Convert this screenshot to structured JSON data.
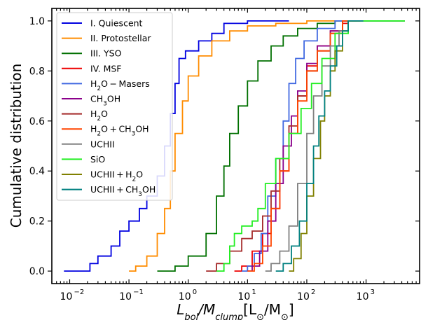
{
  "chart_data": {
    "type": "line",
    "step": true,
    "xscale": "log",
    "xlim": [
      0.005,
      8000
    ],
    "ylim": [
      -0.05,
      1.05
    ],
    "xlabel": "L_bol/M_clump[L⊙/M⊙]",
    "ylabel": "Cumulative distribution",
    "x_tick_labels": [
      "10",
      "10",
      "10",
      "10",
      "10",
      "10"
    ],
    "x_tick_exponents": [
      "−2",
      "−1",
      "0",
      "1",
      "2",
      "3"
    ],
    "x_tick_values": [
      0.01,
      0.1,
      1,
      10,
      100,
      1000
    ],
    "y_tick_labels": [
      "0.0",
      "0.2",
      "0.4",
      "0.6",
      "0.8",
      "1.0"
    ],
    "y_tick_values": [
      0,
      0.2,
      0.4,
      0.6,
      0.8,
      1.0
    ],
    "legend_position": "upper-left",
    "series": [
      {
        "name": "I. Quiescent",
        "legend": [
          "I. Quiescent"
        ],
        "color": "#0000e0",
        "points": [
          [
            0.008,
            0
          ],
          [
            0.02,
            0
          ],
          [
            0.022,
            0.03
          ],
          [
            0.03,
            0.06
          ],
          [
            0.05,
            0.1
          ],
          [
            0.07,
            0.16
          ],
          [
            0.1,
            0.2
          ],
          [
            0.15,
            0.25
          ],
          [
            0.2,
            0.3
          ],
          [
            0.3,
            0.38
          ],
          [
            0.4,
            0.5
          ],
          [
            0.5,
            0.63
          ],
          [
            0.6,
            0.75
          ],
          [
            0.7,
            0.85
          ],
          [
            0.9,
            0.88
          ],
          [
            1.5,
            0.92
          ],
          [
            2.5,
            0.95
          ],
          [
            4,
            0.99
          ],
          [
            10,
            1.0
          ],
          [
            50,
            1.0
          ]
        ]
      },
      {
        "name": "II. Protostellar",
        "legend": [
          "II. Protostellar"
        ],
        "color": "#ff8c00",
        "points": [
          [
            0.1,
            0
          ],
          [
            0.13,
            0.02
          ],
          [
            0.2,
            0.06
          ],
          [
            0.3,
            0.15
          ],
          [
            0.4,
            0.25
          ],
          [
            0.5,
            0.4
          ],
          [
            0.6,
            0.55
          ],
          [
            0.8,
            0.68
          ],
          [
            1,
            0.78
          ],
          [
            1.5,
            0.86
          ],
          [
            2.5,
            0.92
          ],
          [
            5,
            0.96
          ],
          [
            10,
            0.98
          ],
          [
            30,
            0.99
          ],
          [
            100,
            1.0
          ],
          [
            300,
            1.0
          ]
        ]
      },
      {
        "name": "III. YSO",
        "legend": [
          "III. YSO"
        ],
        "color": "#007000",
        "points": [
          [
            0.3,
            0
          ],
          [
            0.6,
            0.02
          ],
          [
            1,
            0.06
          ],
          [
            2,
            0.15
          ],
          [
            3,
            0.3
          ],
          [
            4,
            0.42
          ],
          [
            5,
            0.55
          ],
          [
            7,
            0.66
          ],
          [
            10,
            0.76
          ],
          [
            15,
            0.84
          ],
          [
            25,
            0.9
          ],
          [
            40,
            0.94
          ],
          [
            70,
            0.97
          ],
          [
            150,
            0.99
          ],
          [
            300,
            1.0
          ],
          [
            4500,
            1.0
          ]
        ]
      },
      {
        "name": "IV. MSF",
        "legend": [
          "IV. MSF"
        ],
        "color": "#ee0000",
        "points": [
          [
            6,
            0
          ],
          [
            8,
            0.02
          ],
          [
            12,
            0.08
          ],
          [
            18,
            0.15
          ],
          [
            25,
            0.25
          ],
          [
            35,
            0.4
          ],
          [
            50,
            0.55
          ],
          [
            70,
            0.7
          ],
          [
            100,
            0.82
          ],
          [
            150,
            0.9
          ],
          [
            250,
            0.96
          ],
          [
            400,
            0.99
          ],
          [
            500,
            1.0
          ],
          [
            700,
            1.0
          ]
        ]
      },
      {
        "name": "H2O-Masers",
        "legend": [
          "H",
          "2",
          "O − Masers"
        ],
        "color": "#4169e1",
        "points": [
          [
            8,
            0
          ],
          [
            10,
            0.02
          ],
          [
            13,
            0.07
          ],
          [
            17,
            0.15
          ],
          [
            22,
            0.3
          ],
          [
            30,
            0.45
          ],
          [
            40,
            0.6
          ],
          [
            50,
            0.75
          ],
          [
            65,
            0.85
          ],
          [
            90,
            0.92
          ],
          [
            150,
            0.97
          ],
          [
            300,
            1.0
          ],
          [
            700,
            1.0
          ]
        ]
      },
      {
        "name": "CH3OH",
        "legend": [
          "CH",
          "3",
          "OH"
        ],
        "color": "#8b008b",
        "points": [
          [
            10,
            0
          ],
          [
            12,
            0.02
          ],
          [
            16,
            0.08
          ],
          [
            22,
            0.2
          ],
          [
            30,
            0.35
          ],
          [
            40,
            0.5
          ],
          [
            55,
            0.62
          ],
          [
            70,
            0.72
          ],
          [
            100,
            0.83
          ],
          [
            150,
            0.9
          ],
          [
            250,
            0.96
          ],
          [
            400,
            1.0
          ],
          [
            700,
            1.0
          ]
        ]
      },
      {
        "name": "H2O",
        "legend": [
          "H",
          "2",
          "O"
        ],
        "color": "#a52a2a",
        "points": [
          [
            2,
            0
          ],
          [
            3,
            0.03
          ],
          [
            5,
            0.08
          ],
          [
            8,
            0.13
          ],
          [
            12,
            0.16
          ],
          [
            18,
            0.22
          ],
          [
            25,
            0.32
          ],
          [
            35,
            0.45
          ],
          [
            50,
            0.58
          ],
          [
            70,
            0.7
          ],
          [
            100,
            0.8
          ],
          [
            150,
            0.88
          ],
          [
            250,
            0.95
          ],
          [
            400,
            1.0
          ],
          [
            700,
            1.0
          ]
        ]
      },
      {
        "name": "H2O+CH3OH",
        "legend": [
          "H",
          "2",
          "O + CH",
          "3",
          "OH"
        ],
        "color": "#ff4500",
        "points": [
          [
            10,
            0
          ],
          [
            13,
            0.03
          ],
          [
            18,
            0.1
          ],
          [
            25,
            0.25
          ],
          [
            35,
            0.4
          ],
          [
            50,
            0.55
          ],
          [
            70,
            0.68
          ],
          [
            100,
            0.8
          ],
          [
            150,
            0.88
          ],
          [
            250,
            0.95
          ],
          [
            400,
            1.0
          ],
          [
            600,
            1.0
          ]
        ]
      },
      {
        "name": "UCHII",
        "legend": [
          "UCHII"
        ],
        "color": "#808080",
        "points": [
          [
            20,
            0
          ],
          [
            25,
            0.03
          ],
          [
            35,
            0.08
          ],
          [
            50,
            0.18
          ],
          [
            70,
            0.35
          ],
          [
            100,
            0.55
          ],
          [
            130,
            0.7
          ],
          [
            180,
            0.82
          ],
          [
            250,
            0.9
          ],
          [
            350,
            0.96
          ],
          [
            500,
            1.0
          ],
          [
            800,
            1.0
          ]
        ]
      },
      {
        "name": "SiO",
        "legend": [
          "SiO"
        ],
        "color": "#22ee22",
        "points": [
          [
            3,
            0
          ],
          [
            4,
            0.03
          ],
          [
            5,
            0.1
          ],
          [
            6,
            0.15
          ],
          [
            8,
            0.18
          ],
          [
            12,
            0.2
          ],
          [
            15,
            0.25
          ],
          [
            20,
            0.35
          ],
          [
            30,
            0.45
          ],
          [
            50,
            0.55
          ],
          [
            80,
            0.65
          ],
          [
            120,
            0.75
          ],
          [
            180,
            0.85
          ],
          [
            300,
            0.95
          ],
          [
            500,
            1.0
          ],
          [
            4500,
            1.0
          ]
        ]
      },
      {
        "name": "UCHII+H2O",
        "legend": [
          "UCHII + H",
          "2",
          "O"
        ],
        "color": "#808000",
        "points": [
          [
            50,
            0
          ],
          [
            60,
            0.05
          ],
          [
            80,
            0.15
          ],
          [
            100,
            0.3
          ],
          [
            130,
            0.45
          ],
          [
            170,
            0.6
          ],
          [
            200,
            0.7
          ],
          [
            250,
            0.8
          ],
          [
            300,
            0.88
          ],
          [
            400,
            0.96
          ],
          [
            500,
            1.0
          ],
          [
            800,
            1.0
          ]
        ]
      },
      {
        "name": "UCHII+CH3OH",
        "legend": [
          "UCHII + CH",
          "3",
          "OH"
        ],
        "color": "#008080",
        "points": [
          [
            30,
            0
          ],
          [
            40,
            0.03
          ],
          [
            55,
            0.1
          ],
          [
            75,
            0.2
          ],
          [
            100,
            0.35
          ],
          [
            130,
            0.5
          ],
          [
            160,
            0.62
          ],
          [
            200,
            0.72
          ],
          [
            250,
            0.82
          ],
          [
            320,
            0.9
          ],
          [
            400,
            0.96
          ],
          [
            500,
            1.0
          ],
          [
            900,
            1.0
          ]
        ]
      }
    ]
  }
}
